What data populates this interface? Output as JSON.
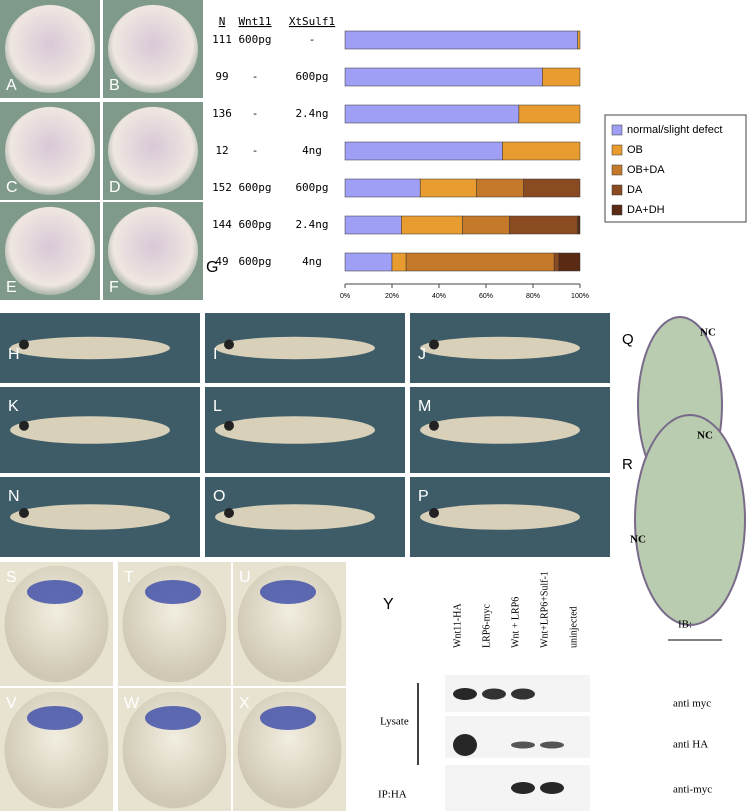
{
  "panels": [
    "A",
    "B",
    "C",
    "D",
    "E",
    "F",
    "G",
    "H",
    "I",
    "J",
    "K",
    "L",
    "M",
    "N",
    "O",
    "P",
    "Q",
    "R",
    "S",
    "T",
    "U",
    "V",
    "W",
    "X",
    "Y"
  ],
  "section_labels": {
    "nc": [
      "NC",
      "NC",
      "NC"
    ]
  },
  "table": {
    "headers": [
      "N",
      "Wnt11",
      "XtSulf1"
    ],
    "rows": [
      [
        111,
        "600pg",
        "-"
      ],
      [
        99,
        "-",
        "600pg"
      ],
      [
        136,
        "-",
        "2.4ng"
      ],
      [
        12,
        "-",
        "4ng"
      ],
      [
        152,
        "600pg",
        "600pg"
      ],
      [
        144,
        "600pg",
        "2.4ng"
      ],
      [
        49,
        "600pg",
        "4ng"
      ]
    ]
  },
  "chart_data": {
    "type": "stacked_barh",
    "series": [
      {
        "name": "normal/slight defect",
        "color": "#9f9ff5",
        "values": [
          99,
          84,
          74,
          67,
          32,
          24,
          20
        ]
      },
      {
        "name": "OB",
        "color": "#e89b2e",
        "values": [
          1,
          16,
          26,
          33,
          24,
          26,
          6
        ]
      },
      {
        "name": "OB+DA",
        "color": "#c47a2a",
        "values": [
          0,
          0,
          0,
          0,
          20,
          20,
          63
        ]
      },
      {
        "name": "DA",
        "color": "#8a4a22",
        "values": [
          0,
          0,
          0,
          0,
          24,
          29,
          2
        ]
      },
      {
        "name": "DA+DH",
        "color": "#5a2a14",
        "values": [
          0,
          0,
          0,
          0,
          0,
          1,
          9
        ]
      }
    ],
    "xlim": [
      0,
      100
    ],
    "xticks": [
      {
        "value": 0,
        "label": "0%"
      },
      {
        "value": 20,
        "label": "20%"
      },
      {
        "value": 40,
        "label": "40%"
      },
      {
        "value": 60,
        "label": "60%"
      },
      {
        "value": 80,
        "label": "80%"
      },
      {
        "value": 100,
        "label": "100%"
      }
    ]
  },
  "blot": {
    "lanes": [
      "Wnt11-HA",
      "LRP6-myc",
      "Wnt + LRP6",
      "Wnt+LRP6+Sulf-1",
      "uninjected"
    ],
    "groups": [
      "Lysate",
      "IP:HA"
    ],
    "ib_header": "IB:",
    "antibodies": [
      "anti myc",
      "anti HA",
      "anti-myc"
    ]
  }
}
